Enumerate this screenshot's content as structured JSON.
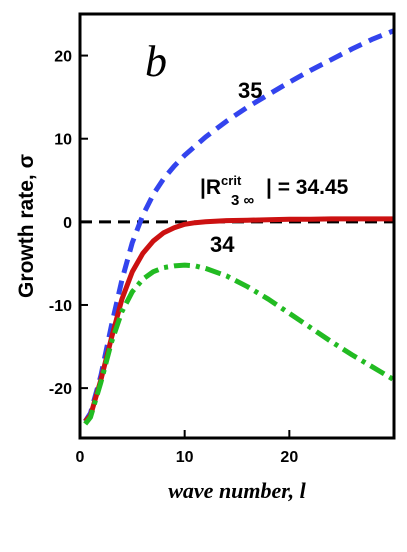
{
  "chart_data": {
    "type": "line",
    "panel_label": "b",
    "xlabel": "wave number, l",
    "ylabel": "Growth rate, σ",
    "xlim": [
      0,
      30
    ],
    "ylim": [
      -26,
      25
    ],
    "x_ticks": [
      0,
      10,
      20
    ],
    "x_tick_labels": [
      "0",
      "10",
      "20"
    ],
    "y_ticks": [
      20,
      10,
      0,
      -10,
      -20
    ],
    "y_tick_labels": [
      "20",
      "10",
      "0",
      "-10",
      "-20"
    ],
    "zero_line": true,
    "annotation": {
      "prefix": "|R",
      "sub": "3 ∞",
      "sup": "crit",
      "suffix": "| = 34.45"
    },
    "series": [
      {
        "label": "35",
        "color": "#3344ee",
        "style": "dashed",
        "x": [
          0.5,
          1,
          2,
          3,
          4,
          5,
          6,
          7,
          8,
          9,
          10,
          12,
          14,
          16,
          18,
          20,
          22,
          24,
          26,
          28,
          30
        ],
        "y": [
          -24,
          -23,
          -18.5,
          -12.5,
          -7,
          -2.5,
          0.8,
          3.3,
          5.2,
          6.7,
          8,
          10.2,
          12.1,
          13.8,
          15.3,
          16.8,
          18.2,
          19.5,
          20.8,
          22,
          23
        ]
      },
      {
        "label": "",
        "color": "#cc1111",
        "style": "solid",
        "x": [
          0.5,
          1,
          2,
          3,
          4,
          5,
          6,
          7,
          8,
          9,
          10,
          11,
          12,
          14,
          16,
          18,
          20,
          22,
          24,
          26,
          28,
          30
        ],
        "y": [
          -24,
          -23.3,
          -19,
          -14,
          -9.3,
          -6,
          -3.8,
          -2.3,
          -1.3,
          -0.7,
          -0.3,
          -0.1,
          0,
          0.15,
          0.2,
          0.25,
          0.3,
          0.3,
          0.35,
          0.35,
          0.35,
          0.35
        ]
      },
      {
        "label": "34",
        "color": "#22bb22",
        "style": "dashdot",
        "x": [
          0.5,
          1,
          2,
          3,
          4,
          5,
          6,
          7,
          8,
          9,
          10,
          11,
          12,
          14,
          16,
          18,
          20,
          22,
          24,
          26,
          28,
          30
        ],
        "y": [
          -24.3,
          -23.5,
          -19.3,
          -14.5,
          -10.8,
          -8.4,
          -6.9,
          -6,
          -5.5,
          -5.3,
          -5.2,
          -5.3,
          -5.6,
          -6.5,
          -7.8,
          -9.3,
          -11,
          -12.7,
          -14.4,
          -16,
          -17.5,
          -19
        ]
      }
    ]
  }
}
